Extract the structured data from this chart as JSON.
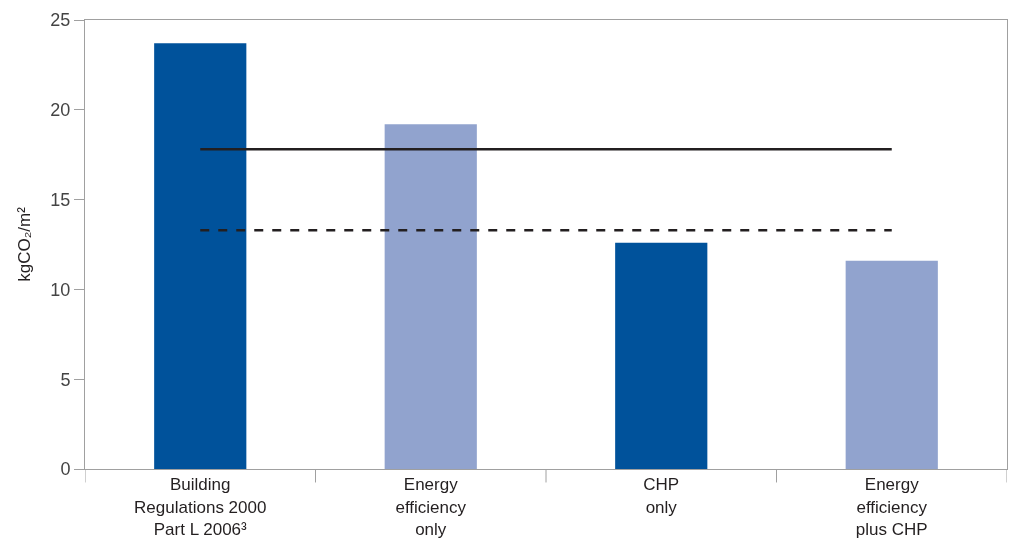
{
  "chart_data": {
    "type": "bar",
    "ylabel": "kgCO₂/m²",
    "categories": [
      "Building\nRegulations 2000\nPart L 2006³",
      "Energy\nefficiency\nonly",
      "CHP\nonly",
      "Energy\nefficiency\nplus CHP"
    ],
    "values": [
      23.7,
      19.2,
      12.6,
      11.6
    ],
    "colors": [
      "#00529b",
      "#91a3ce",
      "#00529b",
      "#91a3ce"
    ],
    "ylim": [
      0,
      25
    ],
    "yticks": [
      0,
      5,
      10,
      15,
      20,
      25
    ],
    "ref_lines": [
      {
        "axis": "y",
        "value": 17.8,
        "color": "#231f20",
        "line_style": "solid"
      },
      {
        "axis": "y",
        "value": 13.3,
        "color": "#231f20",
        "line_style": "dashed"
      }
    ]
  }
}
